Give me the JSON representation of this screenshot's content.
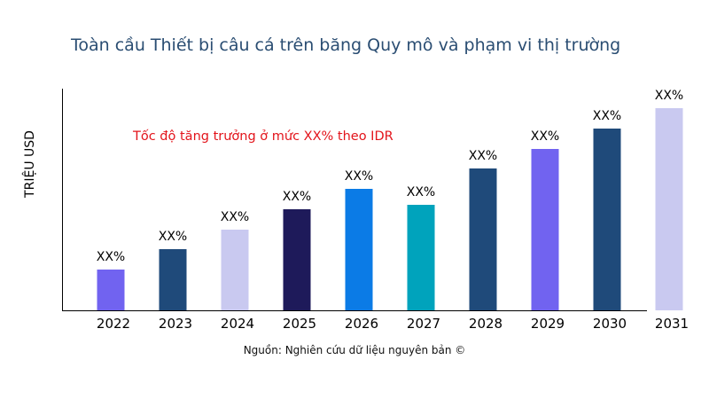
{
  "chart_data": {
    "type": "bar",
    "title": "Toàn cầu Thiết bị câu cá trên băng Quy mô và phạm vi thị trường",
    "annotation": "Tốc độ tăng trưởng ở mức XX% theo IDR",
    "ylabel": "TRIỆU USD",
    "xlabel": "",
    "source": "Nguồn: Nghiên cứu dữ liệu nguyên bản ©",
    "categories": [
      "2022",
      "2023",
      "2024",
      "2025",
      "2026",
      "2027",
      "2028",
      "2029",
      "2030",
      "2031"
    ],
    "values": [
      46,
      69,
      91,
      114,
      137,
      119,
      160,
      182,
      205,
      228
    ],
    "data_labels": [
      "XX%",
      "XX%",
      "XX%",
      "XX%",
      "XX%",
      "XX%",
      "XX%",
      "XX%",
      "XX%",
      "XX%"
    ],
    "colors": [
      "#7163f0",
      "#1f4a7a",
      "#c9c9f0",
      "#1e1a5a",
      "#0b7be6",
      "#00a3bc",
      "#1f4a7a",
      "#7163f0",
      "#1f4a7a",
      "#c9c9f0"
    ],
    "ylim": [
      0,
      250
    ],
    "grid": false,
    "legend": "none"
  }
}
